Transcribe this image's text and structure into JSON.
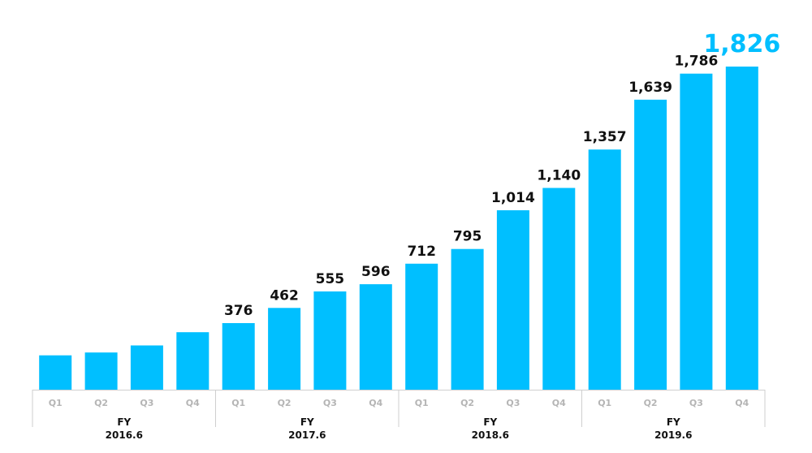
{
  "chart_data": {
    "type": "bar",
    "title": "",
    "xlabel": "",
    "ylabel": "",
    "ylim": [
      0,
      1900
    ],
    "grid": false,
    "legend": "none",
    "bar_color": "#00BFFF",
    "highlight_color": "#00BFFF",
    "value_label_color": "#111111",
    "quarter_label_color": "#b5b5b5",
    "categories": [
      "Q1",
      "Q2",
      "Q3",
      "Q4",
      "Q1",
      "Q2",
      "Q3",
      "Q4",
      "Q1",
      "Q2",
      "Q3",
      "Q4",
      "Q1",
      "Q2",
      "Q3",
      "Q4"
    ],
    "values": [
      194,
      210,
      250,
      325,
      376,
      462,
      555,
      596,
      712,
      795,
      1014,
      1140,
      1357,
      1639,
      1786,
      1826
    ],
    "value_labels": [
      "",
      "",
      "",
      "",
      "376",
      "462",
      "555",
      "596",
      "712",
      "795",
      "1,014",
      "1,140",
      "1,357",
      "1,639",
      "1,786",
      "1,826"
    ],
    "highlight_index": 15,
    "groups": [
      {
        "line1": "FY",
        "line2": "2016.6"
      },
      {
        "line1": "FY",
        "line2": "2017.6"
      },
      {
        "line1": "FY",
        "line2": "2018.6"
      },
      {
        "line1": "FY",
        "line2": "2019.6"
      }
    ]
  }
}
